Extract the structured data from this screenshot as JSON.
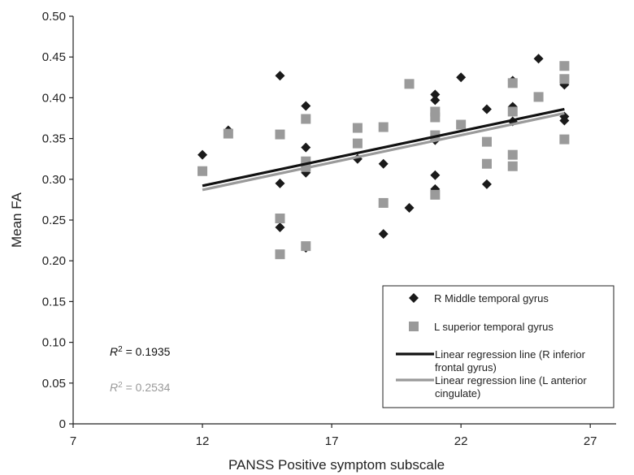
{
  "chart_data": {
    "type": "scatter",
    "xlabel": "PANSS Positive symptom subscale",
    "ylabel": "Mean FA",
    "xlim": [
      7,
      28
    ],
    "ylim": [
      0,
      0.5
    ],
    "xticks": [
      7,
      12,
      17,
      22,
      27
    ],
    "yticks": [
      "0",
      "0.05",
      "0.10",
      "0.15",
      "0.20",
      "0.25",
      "0.30",
      "0.35",
      "0.40",
      "0.45",
      "0.50"
    ],
    "legend_position": "bottom-right",
    "series": [
      {
        "name": "R Middle temporal gyrus",
        "marker": "diamond",
        "color": "#1a1a1a",
        "points": [
          [
            12,
            0.33
          ],
          [
            13,
            0.36
          ],
          [
            15,
            0.427
          ],
          [
            15,
            0.295
          ],
          [
            15,
            0.241
          ],
          [
            16,
            0.39
          ],
          [
            16,
            0.339
          ],
          [
            16,
            0.308
          ],
          [
            16,
            0.216
          ],
          [
            18,
            0.325
          ],
          [
            19,
            0.319
          ],
          [
            19,
            0.233
          ],
          [
            20,
            0.265
          ],
          [
            21,
            0.404
          ],
          [
            21,
            0.397
          ],
          [
            21,
            0.348
          ],
          [
            21,
            0.305
          ],
          [
            21,
            0.288
          ],
          [
            22,
            0.425
          ],
          [
            23,
            0.386
          ],
          [
            23,
            0.294
          ],
          [
            24,
            0.421
          ],
          [
            24,
            0.389
          ],
          [
            24,
            0.371
          ],
          [
            25,
            0.448
          ],
          [
            26,
            0.416
          ],
          [
            26,
            0.377
          ],
          [
            26,
            0.372
          ]
        ]
      },
      {
        "name": "L superior temporal gyrus",
        "marker": "square",
        "color": "#9a9a9a",
        "points": [
          [
            12,
            0.31
          ],
          [
            13,
            0.356
          ],
          [
            15,
            0.355
          ],
          [
            15,
            0.252
          ],
          [
            15,
            0.208
          ],
          [
            16,
            0.374
          ],
          [
            16,
            0.322
          ],
          [
            16,
            0.315
          ],
          [
            16,
            0.218
          ],
          [
            18,
            0.363
          ],
          [
            18,
            0.344
          ],
          [
            19,
            0.364
          ],
          [
            19,
            0.271
          ],
          [
            20,
            0.417
          ],
          [
            21,
            0.383
          ],
          [
            21,
            0.376
          ],
          [
            21,
            0.354
          ],
          [
            21,
            0.281
          ],
          [
            22,
            0.367
          ],
          [
            23,
            0.346
          ],
          [
            23,
            0.319
          ],
          [
            24,
            0.418
          ],
          [
            24,
            0.383
          ],
          [
            24,
            0.33
          ],
          [
            24,
            0.316
          ],
          [
            25,
            0.401
          ],
          [
            26,
            0.439
          ],
          [
            26,
            0.423
          ],
          [
            26,
            0.349
          ]
        ]
      }
    ],
    "regression_lines": [
      {
        "name": "Linear regression line (R inferior frontal gyrus)",
        "legend_lines": [
          "Linear regression line (R inferior",
          "frontal gyrus)"
        ],
        "color": "#111111",
        "x": [
          12,
          26
        ],
        "y": [
          0.292,
          0.386
        ]
      },
      {
        "name": "Linear regression line (L anterior cingulate)",
        "legend_lines": [
          "Linear regression line (L anterior",
          "cingulate)"
        ],
        "color": "#9a9a9a",
        "x": [
          12,
          26
        ],
        "y": [
          0.287,
          0.381
        ]
      }
    ],
    "annotations": [
      {
        "symbol": "R",
        "superscript": "2",
        "rest": " = 0.1935",
        "color": "#111111"
      },
      {
        "symbol": "R",
        "superscript": "2",
        "rest": " = 0.2534",
        "color": "#9a9a9a"
      }
    ]
  }
}
